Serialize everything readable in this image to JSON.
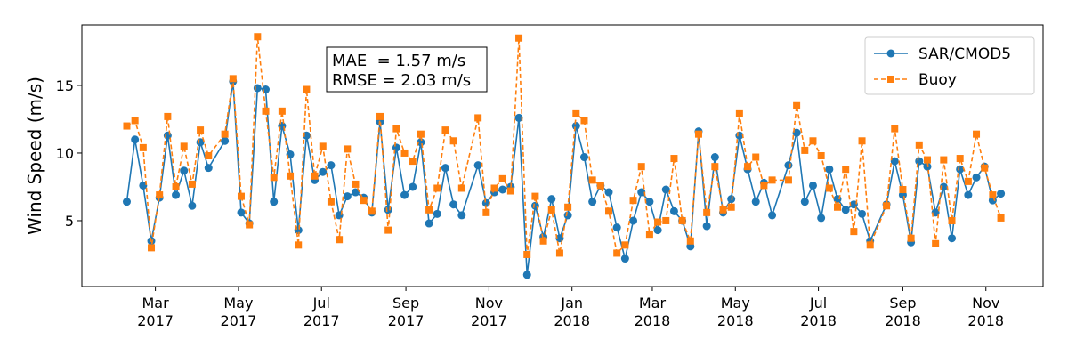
{
  "chart_data": {
    "type": "line",
    "ylabel": "Wind Speed (m/s)",
    "annotation": [
      "MAE  = 1.57 m/s",
      "RMSE = 2.03 m/s"
    ],
    "x": [
      "2017-02-08",
      "2017-02-14",
      "2017-02-20",
      "2017-02-26",
      "2017-03-04",
      "2017-03-10",
      "2017-03-16",
      "2017-03-22",
      "2017-03-28",
      "2017-04-03",
      "2017-04-09",
      "2017-04-21",
      "2017-04-27",
      "2017-05-03",
      "2017-05-09",
      "2017-05-15",
      "2017-05-21",
      "2017-05-27",
      "2017-06-02",
      "2017-06-08",
      "2017-06-14",
      "2017-06-20",
      "2017-06-26",
      "2017-07-02",
      "2017-07-08",
      "2017-07-14",
      "2017-07-20",
      "2017-07-26",
      "2017-08-01",
      "2017-08-07",
      "2017-08-13",
      "2017-08-19",
      "2017-08-25",
      "2017-08-31",
      "2017-09-06",
      "2017-09-12",
      "2017-09-18",
      "2017-09-24",
      "2017-09-30",
      "2017-10-06",
      "2017-10-12",
      "2017-10-24",
      "2017-10-30",
      "2017-11-05",
      "2017-11-11",
      "2017-11-17",
      "2017-11-23",
      "2017-11-29",
      "2017-12-05",
      "2017-12-11",
      "2017-12-17",
      "2017-12-23",
      "2017-12-29",
      "2018-01-04",
      "2018-01-10",
      "2018-01-16",
      "2018-01-22",
      "2018-01-28",
      "2018-02-03",
      "2018-02-09",
      "2018-02-15",
      "2018-02-21",
      "2018-02-27",
      "2018-03-05",
      "2018-03-11",
      "2018-03-17",
      "2018-03-23",
      "2018-03-29",
      "2018-04-04",
      "2018-04-10",
      "2018-04-16",
      "2018-04-22",
      "2018-04-28",
      "2018-05-04",
      "2018-05-10",
      "2018-05-16",
      "2018-05-22",
      "2018-05-28",
      "2018-06-09",
      "2018-06-15",
      "2018-06-21",
      "2018-06-27",
      "2018-07-03",
      "2018-07-09",
      "2018-07-15",
      "2018-07-21",
      "2018-07-27",
      "2018-08-02",
      "2018-08-08",
      "2018-08-20",
      "2018-08-26",
      "2018-09-01",
      "2018-09-07",
      "2018-09-13",
      "2018-09-19",
      "2018-09-25",
      "2018-10-01",
      "2018-10-07",
      "2018-10-13",
      "2018-10-19",
      "2018-10-25",
      "2018-10-31",
      "2018-11-06",
      "2018-11-12"
    ],
    "series": [
      {
        "name": "SAR/CMOD5",
        "color": "#1f77b4",
        "marker": "circle",
        "dash": false,
        "values": [
          6.4,
          11.0,
          7.6,
          3.5,
          6.7,
          11.3,
          6.9,
          8.7,
          6.1,
          10.8,
          8.9,
          10.9,
          15.3,
          5.6,
          4.8,
          14.8,
          14.7,
          6.4,
          12.0,
          9.9,
          4.3,
          11.3,
          8.0,
          8.6,
          9.1,
          5.4,
          6.8,
          7.1,
          6.7,
          5.6,
          12.3,
          5.8,
          10.4,
          6.9,
          7.5,
          10.8,
          4.8,
          5.5,
          8.9,
          6.2,
          5.4,
          9.1,
          6.3,
          7.1,
          7.3,
          7.5,
          12.6,
          1.0,
          6.1,
          3.8,
          6.6,
          3.7,
          5.4,
          12.0,
          9.7,
          6.4,
          7.6,
          7.1,
          4.5,
          2.2,
          5.0,
          7.1,
          6.4,
          4.3,
          7.3,
          5.7,
          5.0,
          3.1,
          11.6,
          4.6,
          9.7,
          5.6,
          6.6,
          11.3,
          8.8,
          6.4,
          7.8,
          5.4,
          9.1,
          11.5,
          6.4,
          7.6,
          5.2,
          8.8,
          6.6,
          5.8,
          6.2,
          5.5,
          3.5,
          6.2,
          9.4,
          6.9,
          3.4,
          9.4,
          9.0,
          5.6,
          7.5,
          3.7,
          8.8,
          6.9,
          8.2,
          9.0,
          6.5,
          7.0
        ]
      },
      {
        "name": "Buoy",
        "color": "#ff7f0e",
        "marker": "square",
        "dash": true,
        "values": [
          12.0,
          12.4,
          10.4,
          3.0,
          6.9,
          12.7,
          7.5,
          10.5,
          7.7,
          11.7,
          9.8,
          11.4,
          15.5,
          6.8,
          4.7,
          18.6,
          13.1,
          8.2,
          13.1,
          8.3,
          3.2,
          14.7,
          8.3,
          10.5,
          6.4,
          3.6,
          10.3,
          7.7,
          6.5,
          5.7,
          12.7,
          4.3,
          11.8,
          10.0,
          9.4,
          11.4,
          5.8,
          7.4,
          11.7,
          10.9,
          7.4,
          12.6,
          5.6,
          7.4,
          8.1,
          7.2,
          18.5,
          2.5,
          6.8,
          3.5,
          5.8,
          2.6,
          6.0,
          12.9,
          12.4,
          8.0,
          7.6,
          5.7,
          2.6,
          3.2,
          6.5,
          9.0,
          4.0,
          4.9,
          5.0,
          9.6,
          5.0,
          3.5,
          11.4,
          5.6,
          9.0,
          5.8,
          6.0,
          12.9,
          9.0,
          9.7,
          7.6,
          8.0,
          8.0,
          13.5,
          10.2,
          10.9,
          9.8,
          7.4,
          6.0,
          8.8,
          4.2,
          10.9,
          3.2,
          6.1,
          11.8,
          7.3,
          3.7,
          10.6,
          9.5,
          3.3,
          9.5,
          5.0,
          9.6,
          7.9,
          11.4,
          8.9,
          6.9,
          5.2
        ]
      }
    ],
    "xlim": [
      "2017-01-06",
      "2018-12-13"
    ],
    "xticks": [
      {
        "value": "2017-03-01",
        "label": "Mar 2017"
      },
      {
        "value": "2017-05-01",
        "label": "May 2017"
      },
      {
        "value": "2017-07-01",
        "label": "Jul 2017"
      },
      {
        "value": "2017-09-01",
        "label": "Sep 2017"
      },
      {
        "value": "2017-11-01",
        "label": "Nov 2017"
      },
      {
        "value": "2018-01-01",
        "label": "Jan 2018"
      },
      {
        "value": "2018-03-01",
        "label": "Mar 2018"
      },
      {
        "value": "2018-05-01",
        "label": "May 2018"
      },
      {
        "value": "2018-07-01",
        "label": "Jul 2018"
      },
      {
        "value": "2018-09-01",
        "label": "Sep 2018"
      },
      {
        "value": "2018-11-01",
        "label": "Nov 2018"
      }
    ],
    "ylim": [
      0.13,
      19.47
    ],
    "yticks": [
      5,
      10,
      15
    ],
    "grid": false,
    "legend": "upper right"
  }
}
